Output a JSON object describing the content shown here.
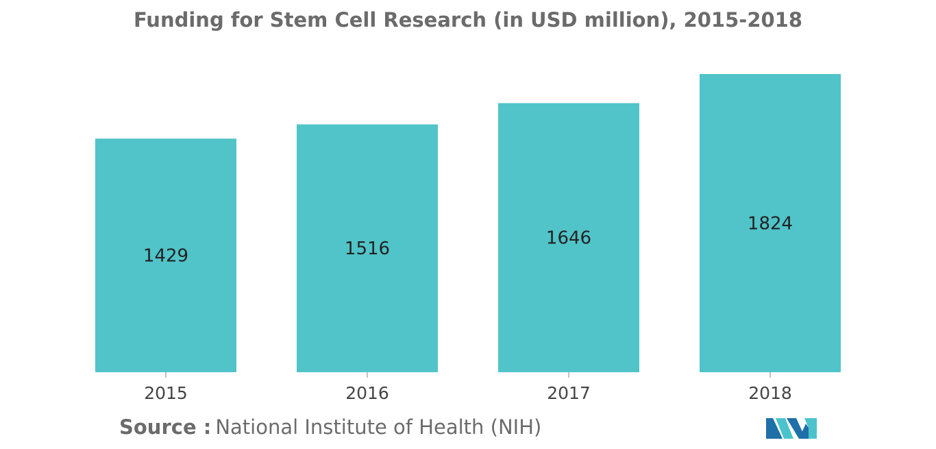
{
  "chart_data": {
    "type": "bar",
    "title": "Funding for Stem Cell Research (in USD million), 2015-2018",
    "categories": [
      "2015",
      "2016",
      "2017",
      "2018"
    ],
    "values": [
      1429,
      1516,
      1646,
      1824
    ],
    "value_labels": [
      "1429",
      "1516",
      "1646",
      "1824"
    ],
    "xlabel": "",
    "ylabel": "",
    "ylim": [
      0,
      1824
    ],
    "bar_color": "#50c4c9",
    "grid": false,
    "legend": "none"
  },
  "source": {
    "label": "Source :",
    "text": "National Institute of Health (NIH)"
  },
  "colors": {
    "title": "#6b6b6b",
    "bar": "#50c4c9",
    "value_label": "#222222",
    "tick_label": "#444444",
    "logo_dark": "#1f6fa8",
    "logo_light": "#4cc3cc"
  },
  "logo": {
    "icon": "mordor-intelligence-logo-icon"
  }
}
